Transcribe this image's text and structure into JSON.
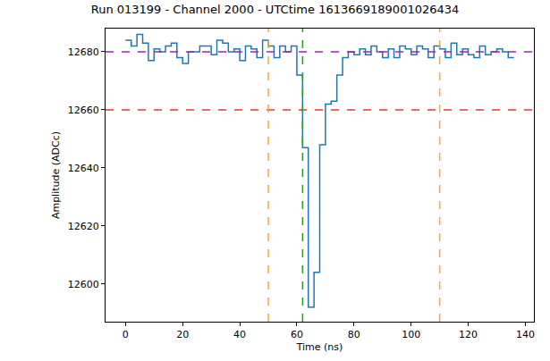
{
  "chart_data": {
    "type": "step",
    "title": "Run 013199 - Channel 2000 - UTCtime 1613669189001026434",
    "x_label": "Time (ns)",
    "y_label": "Amplitude (ADCc)",
    "x": [
      0,
      2,
      4,
      6,
      8,
      10,
      12,
      14,
      16,
      18,
      20,
      22,
      24,
      26,
      28,
      30,
      32,
      34,
      36,
      38,
      40,
      42,
      44,
      46,
      48,
      50,
      52,
      54,
      56,
      58,
      60,
      62,
      64,
      66,
      68,
      70,
      72,
      74,
      76,
      78,
      80,
      82,
      84,
      86,
      88,
      90,
      92,
      94,
      96,
      98,
      100,
      102,
      104,
      106,
      108,
      110,
      112,
      114,
      116,
      118,
      120,
      122,
      124,
      126,
      128,
      130,
      132,
      134,
      136
    ],
    "values": [
      12684,
      12682,
      12686,
      12683,
      12677,
      12681,
      12680,
      12682,
      12683,
      12678,
      12676,
      12680,
      12680,
      12682,
      12682,
      12679,
      12684,
      12683,
      12680,
      12681,
      12677,
      12682,
      12681,
      12678,
      12684,
      12682,
      12678,
      12682,
      12680,
      12682,
      12672,
      12647,
      12592,
      12604,
      12648,
      12662,
      12663,
      12672,
      12678,
      12680,
      12679,
      12681,
      12679,
      12682,
      12680,
      12678,
      12681,
      12678,
      12682,
      12681,
      12679,
      12682,
      12681,
      12678,
      12682,
      12681,
      12678,
      12683,
      12679,
      12681,
      12679,
      12678,
      12682,
      12679,
      12680,
      12681,
      12680,
      12678,
      12678
    ],
    "color": "#1f77b4",
    "xlim": [
      -7,
      143
    ],
    "xticks": [
      0,
      20,
      40,
      60,
      80,
      100,
      120,
      140
    ],
    "ylim": [
      12587,
      12688
    ],
    "yticks": [
      12600,
      12620,
      12640,
      12660,
      12680
    ],
    "grid": false,
    "hlines": [
      {
        "value": 12680,
        "color": "#9c27b0",
        "line_style": "dashed"
      },
      {
        "value": 12660,
        "color": "#e53935",
        "line_style": "dashed"
      }
    ],
    "vlines": [
      {
        "value": 50,
        "color": "#ffa726",
        "line_style": "dashed"
      },
      {
        "value": 62,
        "color": "#2ca02c",
        "line_style": "dashed"
      },
      {
        "value": 110,
        "color": "#ffa726",
        "line_style": "dashed"
      }
    ]
  }
}
